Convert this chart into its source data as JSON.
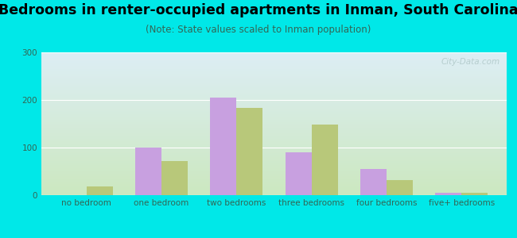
{
  "title": "Bedrooms in renter-occupied apartments in Inman, South Carolina",
  "subtitle": "(Note: State values scaled to Inman population)",
  "categories": [
    "no bedroom",
    "one bedroom",
    "two bedrooms",
    "three bedrooms",
    "four bedrooms",
    "five+ bedrooms"
  ],
  "inman_values": [
    0,
    100,
    205,
    90,
    55,
    5
  ],
  "sc_values": [
    18,
    72,
    183,
    148,
    32,
    5
  ],
  "inman_color": "#c8a0e0",
  "sc_color": "#b8c87a",
  "background_outer": "#00e8e8",
  "background_inner_top": "#ddeef5",
  "background_inner_bottom": "#cce8c0",
  "ylim": [
    0,
    300
  ],
  "yticks": [
    0,
    100,
    200,
    300
  ],
  "bar_width": 0.35,
  "title_fontsize": 12.5,
  "subtitle_fontsize": 8.5,
  "tick_fontsize": 7.5,
  "legend_fontsize": 9,
  "tick_color": "#336655",
  "watermark_color": "#b0c8c8",
  "watermark_alpha": 0.85
}
